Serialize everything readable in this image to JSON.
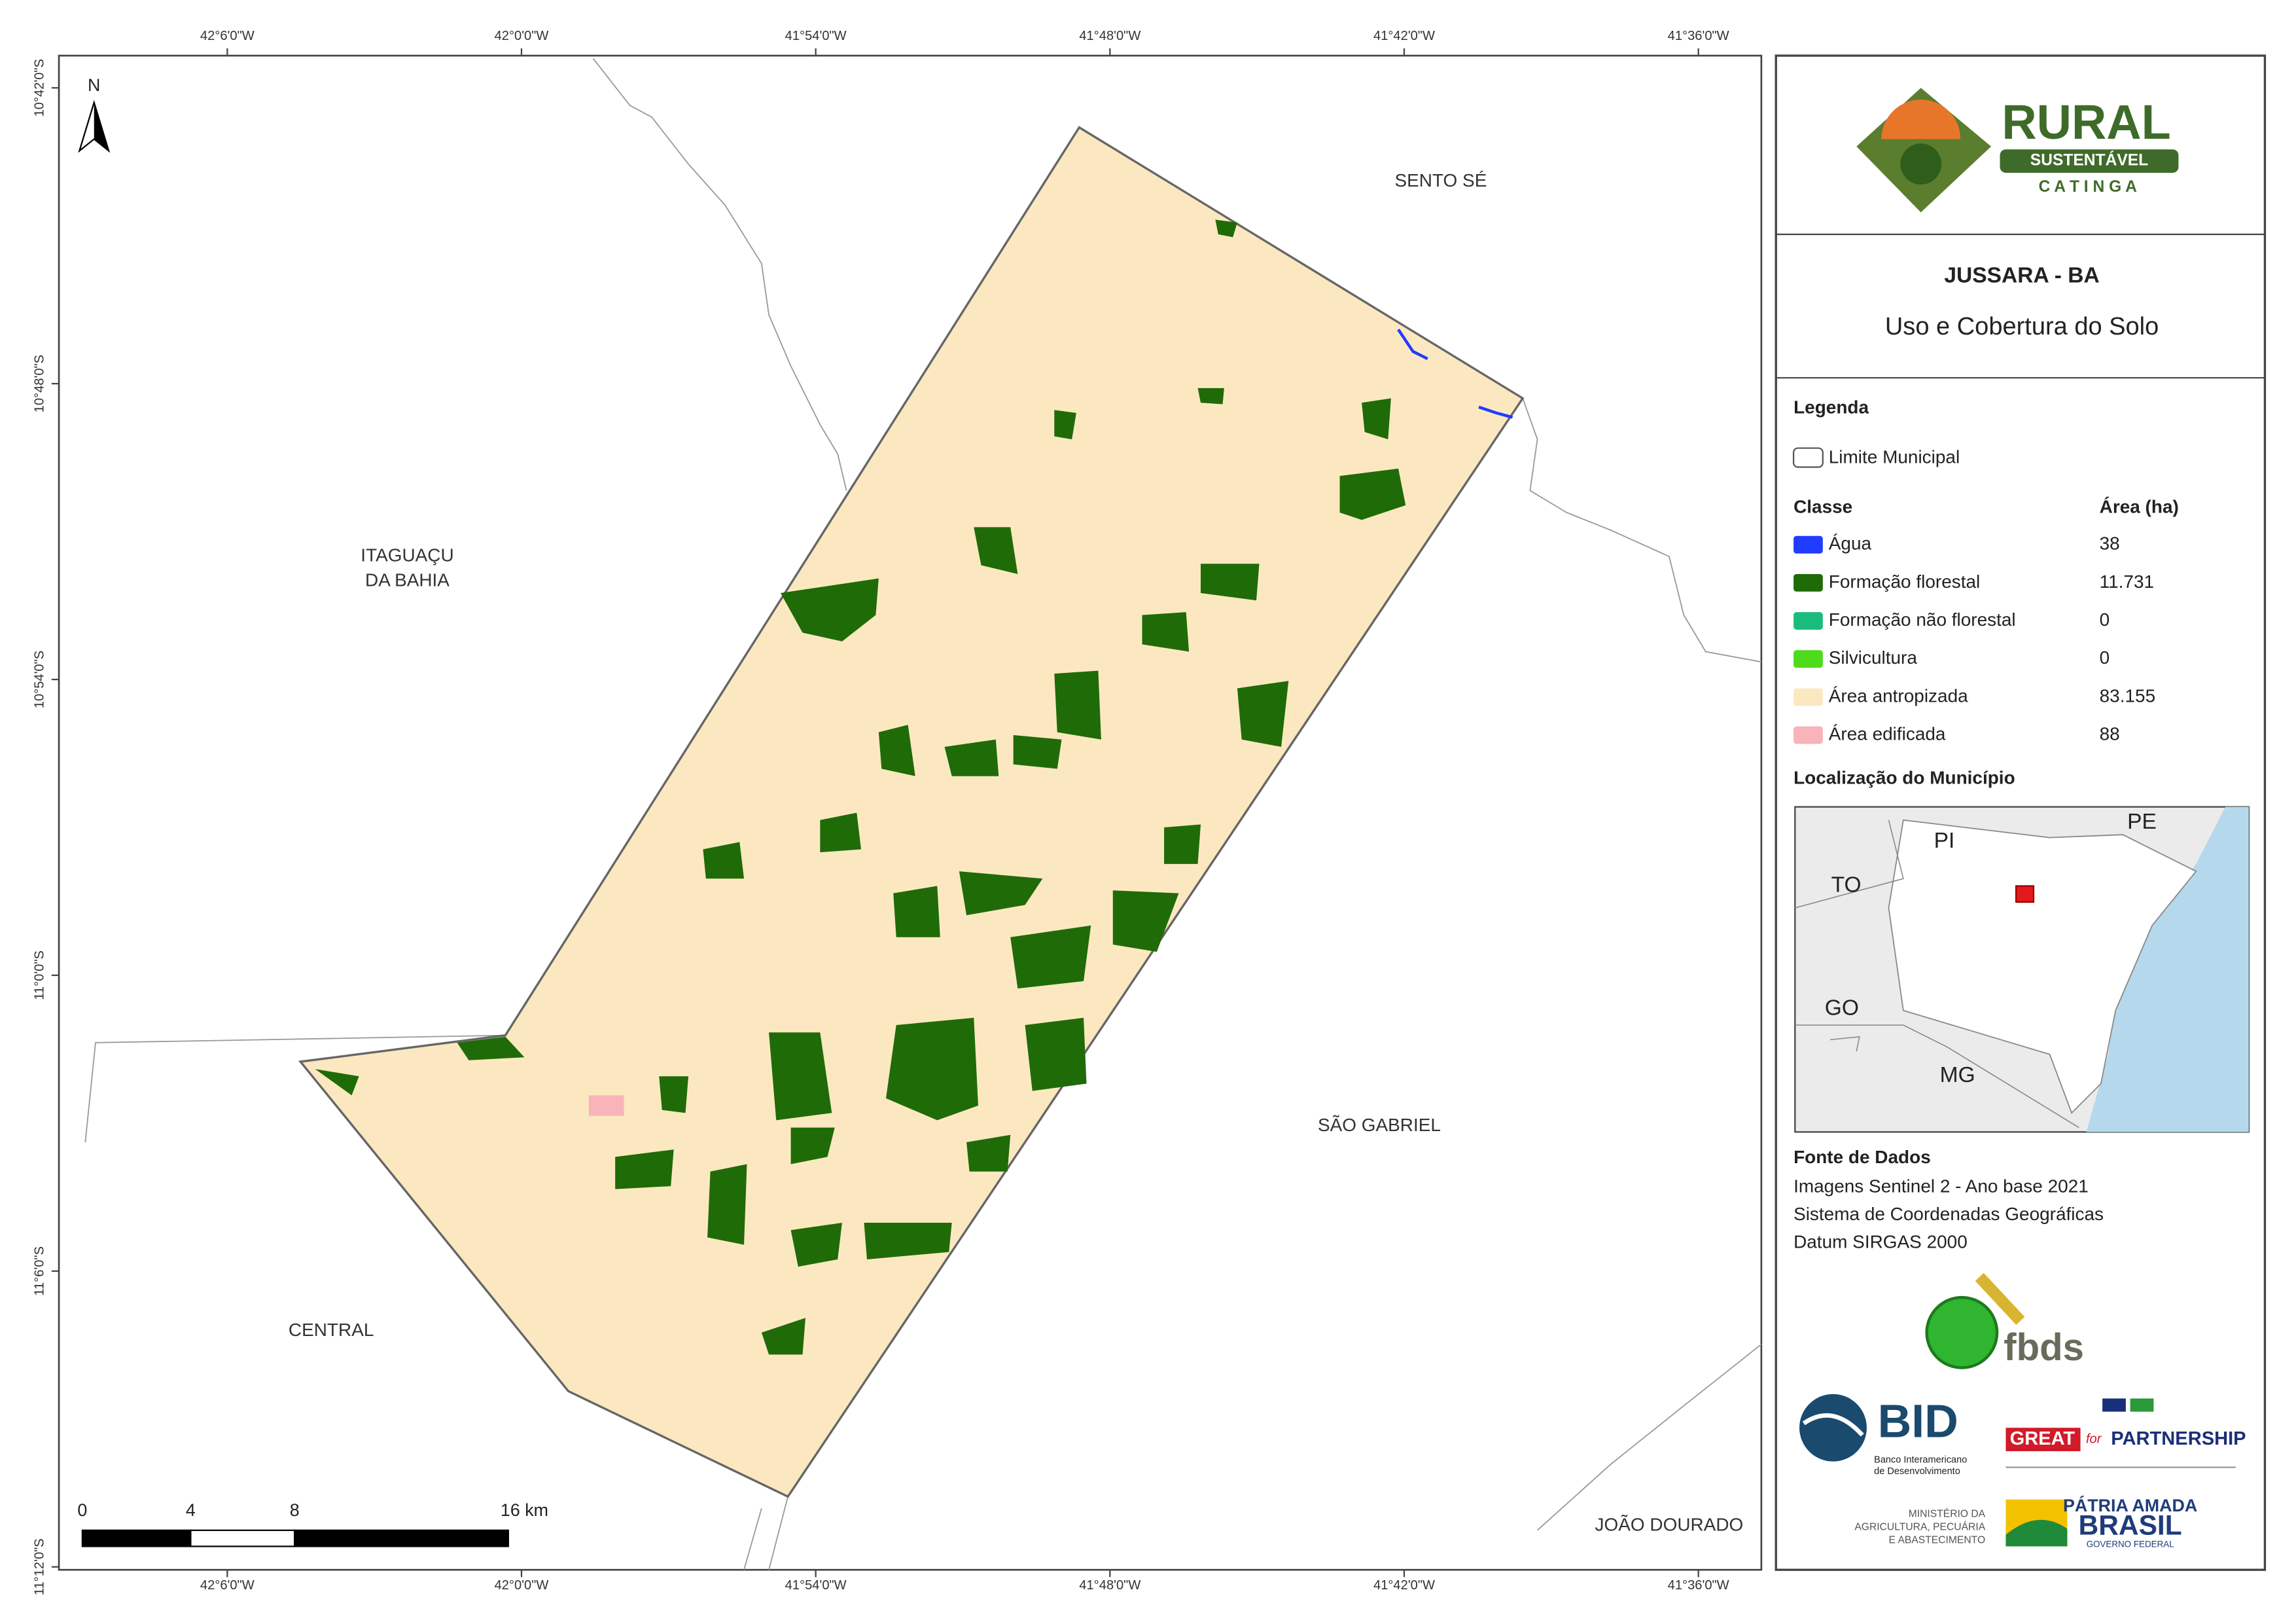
{
  "map": {
    "longitude_labels": [
      "42°6'0\"W",
      "42°0'0\"W",
      "41°54'0\"W",
      "41°48'0\"W",
      "41°42'0\"W",
      "41°36'0\"W"
    ],
    "latitude_labels": [
      "10°42'0\"S",
      "10°48'0\"S",
      "10°54'0\"S",
      "11°0'0\"S",
      "11°6'0\"S",
      "11°12'0\"S"
    ],
    "north": "N",
    "places": {
      "sento_se": "SENTO SÉ",
      "itaguacu": [
        "ITAGUAÇU",
        "DA BAHIA"
      ],
      "sao_gabriel": "SÃO GABRIEL",
      "central": "CENTRAL",
      "joao_dourado": "JOÃO DOURADO"
    },
    "scale_bar": [
      "0",
      "4",
      "8",
      "16 km"
    ]
  },
  "logo": {
    "rural": "RURAL",
    "sustentavel": "SUSTENTÁVEL",
    "caatinga": "C A T I N G A"
  },
  "header": {
    "title": "JUSSARA - BA",
    "subtitle": "Uso e Cobertura do Solo"
  },
  "legend": {
    "title": "Legenda",
    "boundary": "Limite Municipal",
    "class_header": "Classe",
    "area_header": "Área (ha)",
    "classes": [
      {
        "name": "Água",
        "area": "38",
        "color": "#1f3cff"
      },
      {
        "name": "Formação florestal",
        "area": "11.731",
        "color": "#1f6b08"
      },
      {
        "name": "Formação não florestal",
        "area": "0",
        "color": "#1abc7c"
      },
      {
        "name": "Silvicultura",
        "area": "0",
        "color": "#4ddb1b"
      },
      {
        "name": "Área antropizada",
        "area": "83.155",
        "color": "#fbe8c0"
      },
      {
        "name": "Área edificada",
        "area": "88",
        "color": "#f8b4b8"
      }
    ]
  },
  "location": {
    "title": "Localização do Município",
    "states": [
      "PI",
      "PE",
      "TO",
      "GO",
      "MG"
    ]
  },
  "sources": {
    "title": "Fonte de Dados",
    "lines": [
      "Imagens Sentinel 2 - Ano base 2021",
      "Sistema de Coordenadas Geográficas",
      "Datum SIRGAS 2000"
    ]
  },
  "partners": {
    "fbds": "fbds",
    "bid": "BID",
    "bid_name": [
      "Banco Interamericano",
      "de Desenvolvimento"
    ],
    "great": "GREAT",
    "for": "for",
    "partnership": "PARTNERSHIP",
    "ministry": [
      "MINISTÉRIO DA",
      "AGRICULTURA, PECUÁRIA",
      "E ABASTECIMENTO"
    ],
    "patria": "PÁTRIA AMADA",
    "brasil": "BRASIL",
    "governo": "GOVERNO FEDERAL"
  }
}
